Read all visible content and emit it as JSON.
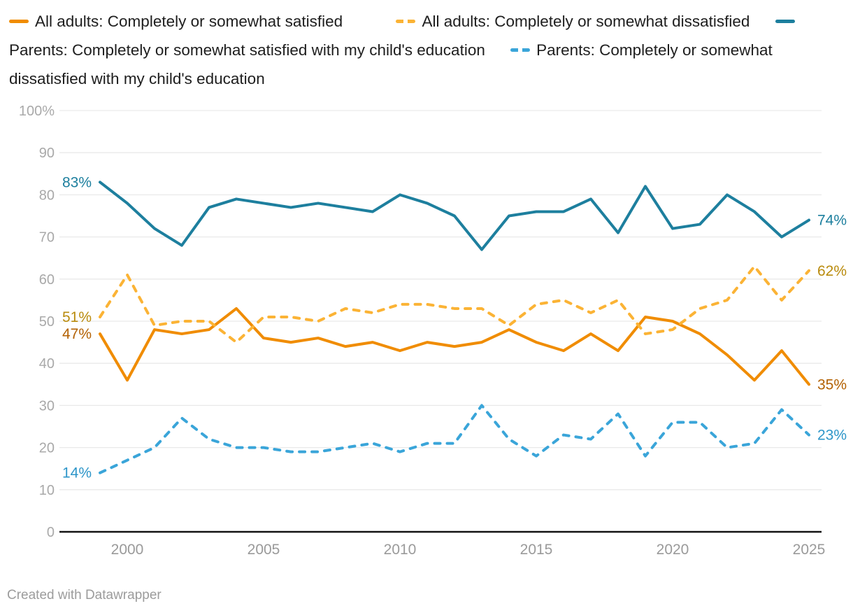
{
  "chart_data": {
    "type": "line",
    "title": "",
    "grid": true,
    "legend_position": "top",
    "y_axis": {
      "min": 0,
      "max": 100,
      "tick_step": 10,
      "top_tick_label": "100%"
    },
    "x_ticks": [
      "2000",
      "2005",
      "2010",
      "2015",
      "2020",
      "2025"
    ],
    "years": [
      1999,
      2000,
      2001,
      2002,
      2003,
      2004,
      2005,
      2006,
      2007,
      2008,
      2009,
      2010,
      2011,
      2012,
      2013,
      2014,
      2015,
      2016,
      2017,
      2018,
      2019,
      2020,
      2021,
      2022,
      2023,
      2024,
      2025
    ],
    "series": [
      {
        "name": "All adults: Completely or somewhat satisfied",
        "line": "solid",
        "color": "#f08c00",
        "label_color": "#b36103",
        "start_label": "47%",
        "end_label": "35%",
        "values": [
          47,
          36,
          48,
          47,
          48,
          53,
          46,
          45,
          46,
          44,
          45,
          43,
          45,
          44,
          45,
          48,
          45,
          43,
          47,
          43,
          51,
          50,
          47,
          42,
          36,
          43,
          35
        ]
      },
      {
        "name": "All adults: Completely or somewhat dissatisfied",
        "line": "dashed",
        "color": "#fbb335",
        "label_color": "#b98b0d",
        "start_label": "51%",
        "end_label": "62%",
        "values": [
          51,
          61,
          49,
          50,
          50,
          45,
          51,
          51,
          50,
          53,
          52,
          54,
          54,
          53,
          53,
          49,
          54,
          55,
          52,
          55,
          47,
          48,
          53,
          55,
          63,
          55,
          62
        ]
      },
      {
        "name": "Parents: Completely or somewhat satisfied with my child's education",
        "line": "solid",
        "color": "#1d7f9e",
        "label_color": "#1d7f9e",
        "start_label": "83%",
        "end_label": "74%",
        "values": [
          83,
          78,
          72,
          68,
          77,
          79,
          78,
          77,
          78,
          77,
          76,
          80,
          78,
          75,
          67,
          75,
          76,
          76,
          79,
          71,
          82,
          72,
          73,
          80,
          76,
          70,
          74
        ]
      },
      {
        "name": "Parents: Completely or somewhat dissatisfied with my child's education",
        "line": "dashed",
        "color": "#3aa5d9",
        "label_color": "#2e96c9",
        "start_label": "14%",
        "end_label": "23%",
        "values": [
          14,
          17,
          20,
          27,
          22,
          20,
          20,
          19,
          19,
          20,
          21,
          19,
          21,
          21,
          30,
          22,
          18,
          23,
          22,
          28,
          18,
          26,
          26,
          20,
          21,
          29,
          23
        ]
      }
    ]
  },
  "footer": {
    "credit": "Created with Datawrapper"
  }
}
